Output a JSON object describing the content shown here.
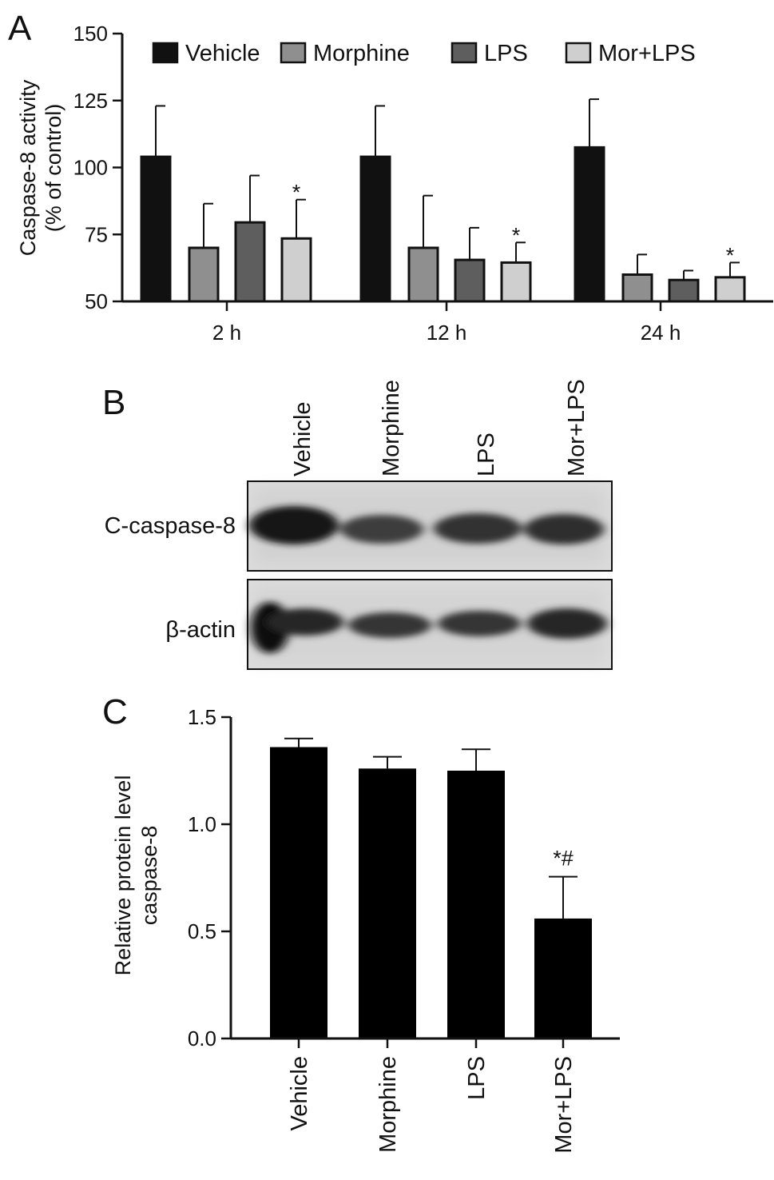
{
  "panels": {
    "A": {
      "letter": "A",
      "chart_data": {
        "type": "bar",
        "ylabel_line1": "Caspase-8 activity",
        "ylabel_line2": "(% of control)",
        "ylim": [
          50,
          150
        ],
        "yticks": [
          "50",
          "75",
          "100",
          "125",
          "150"
        ],
        "categories": [
          "2 h",
          "12 h",
          "24 h"
        ],
        "series": [
          {
            "name": "Vehicle",
            "color": "#111111",
            "values": [
              104,
              104,
              107.5
            ],
            "errors": [
              19,
              19,
              18
            ]
          },
          {
            "name": "Morphine",
            "color": "#8f8f8f",
            "values": [
              70,
              70,
              60
            ],
            "errors": [
              16.5,
              19.5,
              7.5
            ]
          },
          {
            "name": "LPS",
            "color": "#5e5e5e",
            "values": [
              79.5,
              65.5,
              58
            ],
            "errors": [
              17.5,
              12,
              3.5
            ]
          },
          {
            "name": "Mor+LPS",
            "color": "#cfcfcf",
            "values": [
              73.5,
              64.5,
              59
            ],
            "errors": [
              14.5,
              7.5,
              5.5
            ]
          }
        ],
        "annotations": [
          {
            "text": "*",
            "category": 0,
            "series": 3
          },
          {
            "text": "*",
            "category": 1,
            "series": 3
          },
          {
            "text": "*",
            "category": 2,
            "series": 3
          }
        ],
        "legend_position": "top"
      }
    },
    "B": {
      "letter": "B",
      "lanes": [
        "Vehicle",
        "Morphine",
        "LPS",
        "Mor+LPS"
      ],
      "rows": [
        "C-caspase-8",
        "β-actin"
      ]
    },
    "C": {
      "letter": "C",
      "chart_data": {
        "type": "bar",
        "ylabel_line1": "Relative protein level",
        "ylabel_line2": "caspase-8",
        "ylim": [
          0,
          1.5
        ],
        "yticks": [
          "0.0",
          "0.5",
          "1.0",
          "1.5"
        ],
        "categories": [
          "Vehicle",
          "Morphine",
          "LPS",
          "Mor+LPS"
        ],
        "values": [
          1.36,
          1.26,
          1.25,
          0.56
        ],
        "errors": [
          0.04,
          0.055,
          0.1,
          0.195
        ],
        "color": "#000000",
        "annotations": [
          {
            "text": "*#",
            "category": 3
          }
        ]
      }
    }
  }
}
